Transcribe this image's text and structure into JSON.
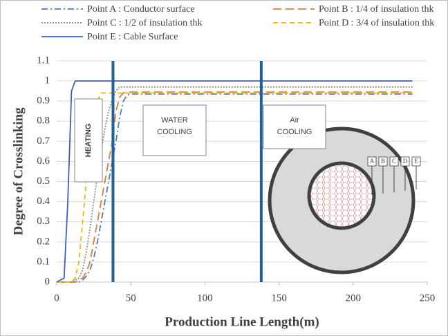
{
  "chart_data": {
    "type": "line",
    "xlabel": "Production Line  Length(m)",
    "ylabel": "Degree of Crosslinking",
    "x": [
      0,
      5,
      7.5,
      10,
      12.5,
      15,
      17.5,
      20,
      22.5,
      25,
      27.5,
      30,
      32.5,
      35,
      37.5,
      40,
      42.5,
      45,
      47.5,
      50,
      240
    ],
    "series": [
      {
        "name": "Point A : Conductor surface",
        "color": "#4a7ebb",
        "dash": "dashdot",
        "values": [
          0,
          0,
          0,
          0,
          0,
          0,
          0.01,
          0.03,
          0.06,
          0.12,
          0.2,
          0.3,
          0.4,
          0.5,
          0.6,
          0.7,
          0.82,
          0.9,
          0.93,
          0.935,
          0.935
        ]
      },
      {
        "name": "Point B : 1/4 of insulation thk",
        "color": "#e07b39",
        "dash": "longdash",
        "values": [
          0,
          0,
          0,
          0,
          0,
          0.01,
          0.02,
          0.05,
          0.1,
          0.2,
          0.3,
          0.4,
          0.5,
          0.6,
          0.7,
          0.85,
          0.92,
          0.94,
          0.945,
          0.945,
          0.945
        ]
      },
      {
        "name": "Point C : 1/2 of insulation thk",
        "color": "#8c8c8c",
        "dash": "dot",
        "values": [
          0,
          0,
          0,
          0,
          0.01,
          0.02,
          0.06,
          0.15,
          0.27,
          0.4,
          0.53,
          0.65,
          0.76,
          0.85,
          0.91,
          0.95,
          0.97,
          0.97,
          0.97,
          0.97,
          0.97
        ]
      },
      {
        "name": "Point D : 3/4 of insulation thk",
        "color": "#f5b800",
        "dash": "dash",
        "values": [
          0,
          0,
          0,
          0,
          0.02,
          0.1,
          0.3,
          0.5,
          0.65,
          0.8,
          0.9,
          0.94,
          0.94,
          0.94,
          0.94,
          0.94,
          0.94,
          0.94,
          0.94,
          0.94,
          0.94
        ]
      },
      {
        "name": "Point E : Cable Surface",
        "color": "#3b5fc0",
        "dash": "solid",
        "values": [
          0,
          0.02,
          0.4,
          0.95,
          1,
          1,
          1,
          1,
          1,
          1,
          1,
          1,
          1,
          1,
          1,
          1,
          1,
          1,
          1,
          1,
          1
        ]
      }
    ],
    "xlim": [
      0,
      250
    ],
    "ylim": [
      0,
      1.1
    ],
    "xticks": [
      0,
      50,
      100,
      150,
      200,
      250
    ],
    "yticks": [
      0,
      0.1,
      0.2,
      0.3,
      0.4,
      0.5,
      0.6,
      0.7,
      0.8,
      0.9,
      1,
      1.1
    ],
    "grid": true,
    "vlines": [
      38,
      138
    ],
    "vline_color": "#1f5fa0",
    "zones": {
      "heating": "HEATING",
      "water": [
        "WATER",
        "COOLING"
      ],
      "air": [
        "Air",
        "COOLING"
      ]
    },
    "diagram_labels": [
      "A",
      "B",
      "C",
      "D",
      "E"
    ]
  }
}
